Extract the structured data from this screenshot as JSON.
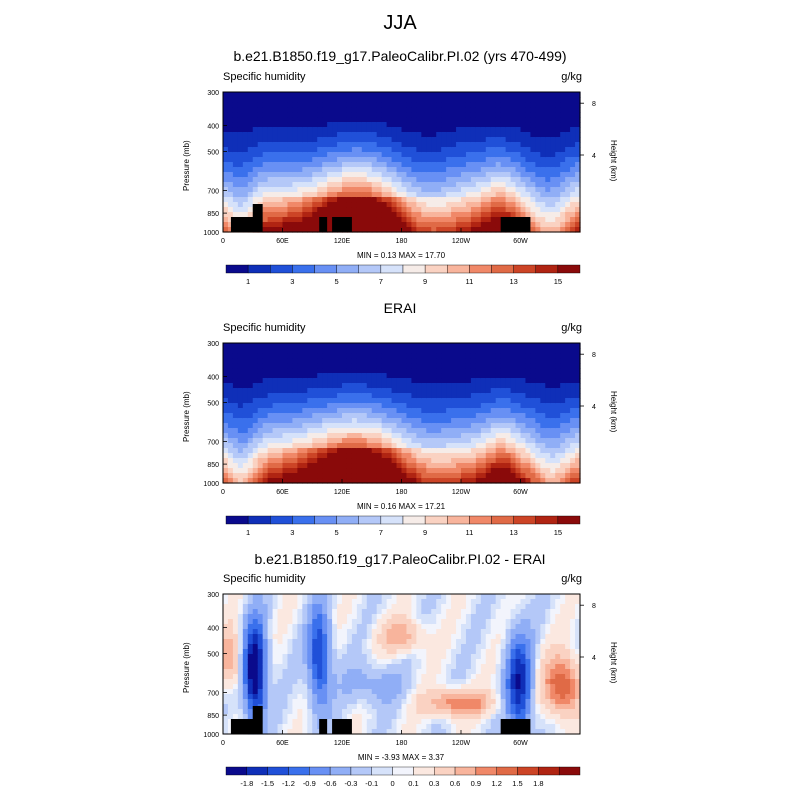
{
  "main_title": "JJA",
  "palettes": {
    "q": [
      "#0a0a8c",
      "#0f2fb8",
      "#2050d8",
      "#3a70ec",
      "#6890f4",
      "#90aef6",
      "#b4c8f8",
      "#d6e2fa",
      "#f6ece8",
      "#fad2c2",
      "#f8b49c",
      "#f08868",
      "#e06a46",
      "#cc4426",
      "#b02412",
      "#8a0a0a"
    ],
    "diff": [
      "#0a0a8c",
      "#0f2fb8",
      "#2050d8",
      "#3a70ec",
      "#6890f4",
      "#90aef6",
      "#b4c8f8",
      "#d6e2fa",
      "#f2f4fc",
      "#fbe8e0",
      "#fad2c2",
      "#f8b49c",
      "#f08868",
      "#e06a46",
      "#cc4426",
      "#b02412",
      "#8a0a0a"
    ]
  },
  "panels": [
    {
      "title": "b.e21.B1850.f19_g17.PaleoCalibr.PI.02 (yrs 470-499)",
      "variable": "Specific humidity",
      "units": "g/kg",
      "minmax": "MIN =   0.13  MAX =  17.70",
      "ylabel": "Pressure (mb)",
      "y2label": "Height (km)",
      "palette": "q",
      "colorbar_labels": [
        "1",
        "3",
        "5",
        "7",
        "9",
        "11",
        "13",
        "15"
      ],
      "chart_data": {
        "type": "heatmap",
        "field": "zonal cross-section of specific humidity",
        "xlabel": "",
        "ylabel": "Pressure (mb)",
        "x_ticks": [
          "0",
          "60E",
          "120E",
          "180",
          "120W",
          "60W"
        ],
        "y_ticks": [
          "300",
          "400",
          "500",
          "700",
          "850",
          "1000"
        ],
        "y2_ticks": [
          "8",
          "4"
        ],
        "min": 0.13,
        "max": 17.7,
        "colorbar_levels": [
          1,
          2,
          3,
          4,
          5,
          6,
          7,
          8,
          9,
          10,
          11,
          12,
          13,
          14,
          15
        ],
        "terrain_mask": true
      }
    },
    {
      "title": "ERAI",
      "variable": "Specific humidity",
      "units": "g/kg",
      "minmax": "MIN =   0.16  MAX =  17.21",
      "ylabel": "Pressure (mb)",
      "y2label": "Height (km)",
      "palette": "q",
      "colorbar_labels": [
        "1",
        "3",
        "5",
        "7",
        "9",
        "11",
        "13",
        "15"
      ],
      "chart_data": {
        "type": "heatmap",
        "field": "zonal cross-section of specific humidity",
        "xlabel": "",
        "ylabel": "Pressure (mb)",
        "x_ticks": [
          "0",
          "60E",
          "120E",
          "180",
          "120W",
          "60W"
        ],
        "y_ticks": [
          "300",
          "400",
          "500",
          "700",
          "850",
          "1000"
        ],
        "y2_ticks": [
          "8",
          "4"
        ],
        "min": 0.16,
        "max": 17.21,
        "colorbar_levels": [
          1,
          2,
          3,
          4,
          5,
          6,
          7,
          8,
          9,
          10,
          11,
          12,
          13,
          14,
          15
        ],
        "terrain_mask": false
      }
    },
    {
      "title": "b.e21.B1850.f19_g17.PaleoCalibr.PI.02 - ERAI",
      "variable": "Specific humidity",
      "units": "g/kg",
      "minmax": "MIN =  -3.93  MAX =   3.37",
      "ylabel": "Pressure (mb)",
      "y2label": "Height (km)",
      "palette": "diff",
      "colorbar_labels": [
        "-1.8",
        "-1.5",
        "-1.2",
        "-0.9",
        "-0.6",
        "-0.3",
        "-0.1",
        "0",
        "0.1",
        "0.3",
        "0.6",
        "0.9",
        "1.2",
        "1.5",
        "1.8"
      ],
      "chart_data": {
        "type": "heatmap",
        "field": "difference of specific humidity (model - ERAI)",
        "xlabel": "",
        "ylabel": "Pressure (mb)",
        "x_ticks": [
          "0",
          "60E",
          "120E",
          "180",
          "120W",
          "60W"
        ],
        "y_ticks": [
          "300",
          "400",
          "500",
          "700",
          "850",
          "1000"
        ],
        "y2_ticks": [
          "8",
          "4"
        ],
        "min": -3.93,
        "max": 3.37,
        "colorbar_levels": [
          -1.8,
          -1.5,
          -1.2,
          -0.9,
          -0.6,
          -0.3,
          -0.1,
          0,
          0.1,
          0.3,
          0.6,
          0.9,
          1.2,
          1.5,
          1.8
        ],
        "terrain_mask": true
      }
    }
  ]
}
